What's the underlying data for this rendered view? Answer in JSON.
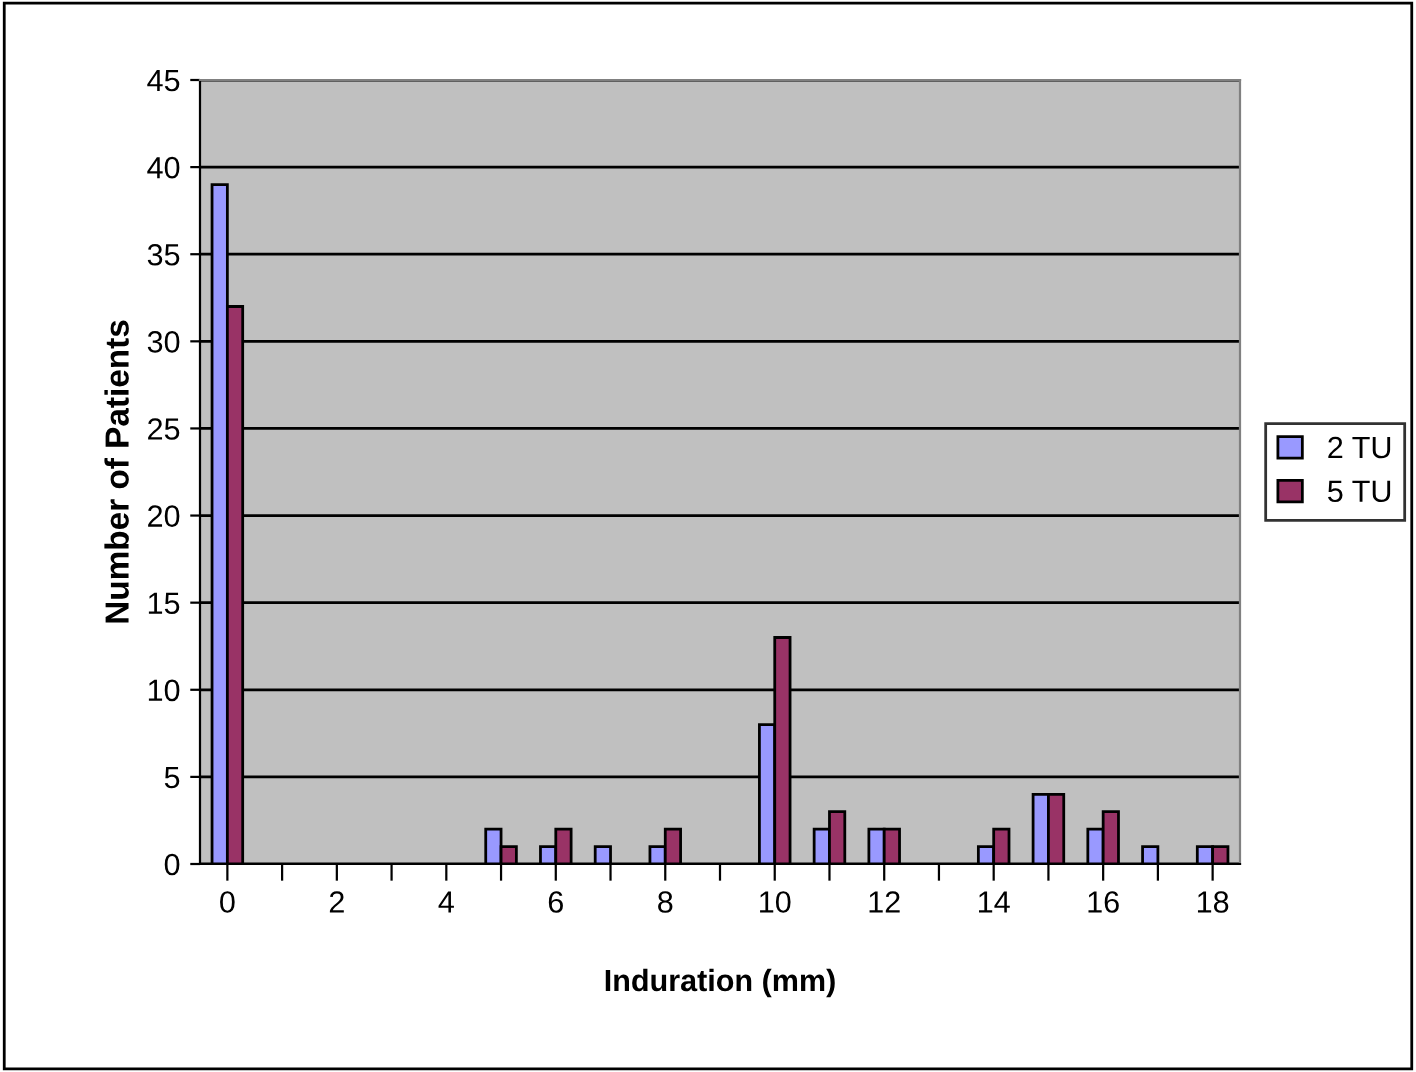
{
  "chart_data": {
    "type": "bar",
    "xlabel": "Induration (mm)",
    "ylabel": "Number of Patients",
    "categories": [
      "0",
      null,
      "2",
      null,
      "4",
      null,
      "6",
      null,
      "8",
      null,
      "10",
      null,
      "12",
      null,
      "14",
      null,
      "16",
      null,
      "18"
    ],
    "series": [
      {
        "name": "2 TU",
        "color": "#9999ff",
        "values": [
          39,
          0,
          0,
          0,
          0,
          2,
          1,
          1,
          1,
          0,
          8,
          2,
          2,
          0,
          1,
          4,
          2,
          1,
          1
        ]
      },
      {
        "name": "5 TU",
        "color": "#993366",
        "values": [
          32,
          0,
          0,
          0,
          0,
          1,
          2,
          0,
          2,
          0,
          13,
          3,
          2,
          0,
          2,
          4,
          3,
          0,
          1
        ]
      }
    ],
    "ylim": [
      0,
      45
    ],
    "yticks": [
      0,
      5,
      10,
      15,
      20,
      25,
      30,
      35,
      40,
      45
    ],
    "grid": "y",
    "legend": "right"
  }
}
